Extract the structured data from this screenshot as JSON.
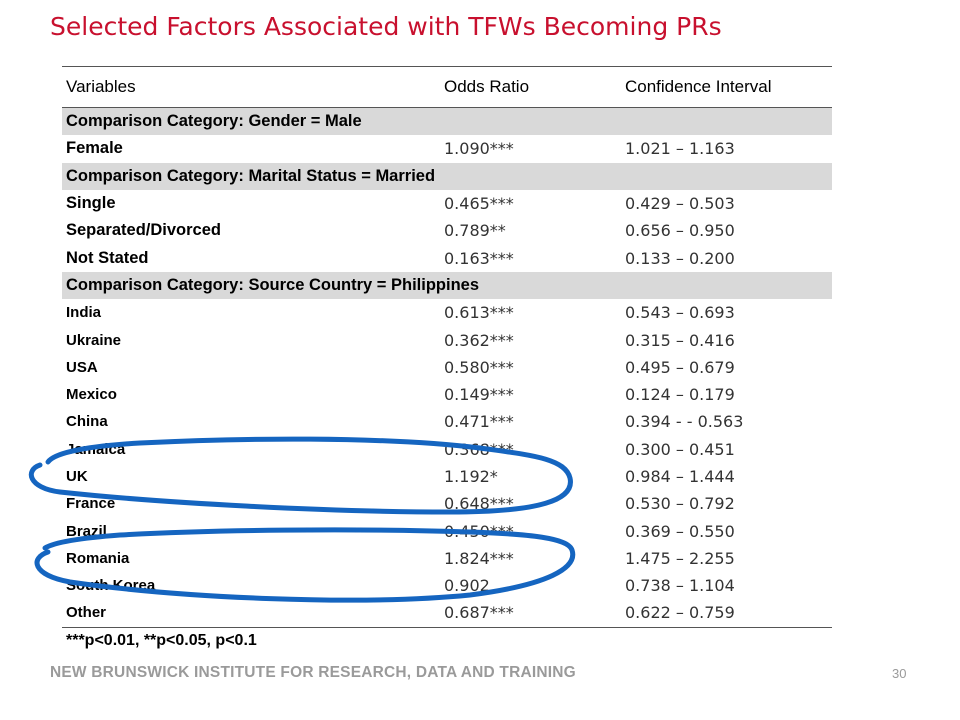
{
  "title": "Selected Factors Associated with TFWs Becoming PRs",
  "table": {
    "headers": [
      "Variables",
      "Odds Ratio",
      "Confidence Interval"
    ],
    "sections": [
      {
        "category": "Comparison Category: Gender = Male",
        "rows": [
          {
            "variable": "Female",
            "odds_ratio": "1.090***",
            "ci": "1.021 – 1.163"
          }
        ]
      },
      {
        "category": "Comparison Category: Marital Status = Married",
        "rows": [
          {
            "variable": "Single",
            "odds_ratio": "0.465***",
            "ci": "0.429 – 0.503"
          },
          {
            "variable": "Separated/Divorced",
            "odds_ratio": "0.789**",
            "ci": "0.656 – 0.950"
          },
          {
            "variable": "Not Stated",
            "odds_ratio": "0.163***",
            "ci": "0.133 – 0.200"
          }
        ]
      },
      {
        "category": "Comparison Category: Source Country = Philippines",
        "rows": [
          {
            "variable": "India",
            "odds_ratio": "0.613***",
            "ci": "0.543 – 0.693"
          },
          {
            "variable": "Ukraine",
            "odds_ratio": "0.362***",
            "ci": "0.315 – 0.416"
          },
          {
            "variable": "USA",
            "odds_ratio": "0.580***",
            "ci": "0.495 – 0.679"
          },
          {
            "variable": "Mexico",
            "odds_ratio": "0.149***",
            "ci": "0.124 – 0.179"
          },
          {
            "variable": "China",
            "odds_ratio": "0.471***",
            "ci": "0.394 - - 0.563"
          },
          {
            "variable": "Jamaica",
            "odds_ratio": "0.368***",
            "ci": "0.300 – 0.451"
          },
          {
            "variable": "UK",
            "odds_ratio": "1.192*",
            "ci": "0.984 – 1.444"
          },
          {
            "variable": "France",
            "odds_ratio": "0.648***",
            "ci": "0.530 – 0.792"
          },
          {
            "variable": "Brazil",
            "odds_ratio": "0.450***",
            "ci": "0.369 – 0.550"
          },
          {
            "variable": "Romania",
            "odds_ratio": "1.824***",
            "ci": "1.475 – 2.255"
          },
          {
            "variable": "South Korea",
            "odds_ratio": "0.902",
            "ci": "0.738 – 1.104"
          },
          {
            "variable": "Other",
            "odds_ratio": "0.687***",
            "ci": "0.622 – 0.759"
          }
        ]
      }
    ]
  },
  "footnote": "***p<0.01, **p<0.05, p<0.1",
  "footer": "NEW BRUNSWICK INSTITUTE FOR RESEARCH, DATA AND TRAINING",
  "page_number": "30",
  "colors": {
    "title": "#c8102e",
    "category_band": "#d9d9d9",
    "annotation_ink": "#1565c0",
    "footer": "#9a9a9a"
  }
}
